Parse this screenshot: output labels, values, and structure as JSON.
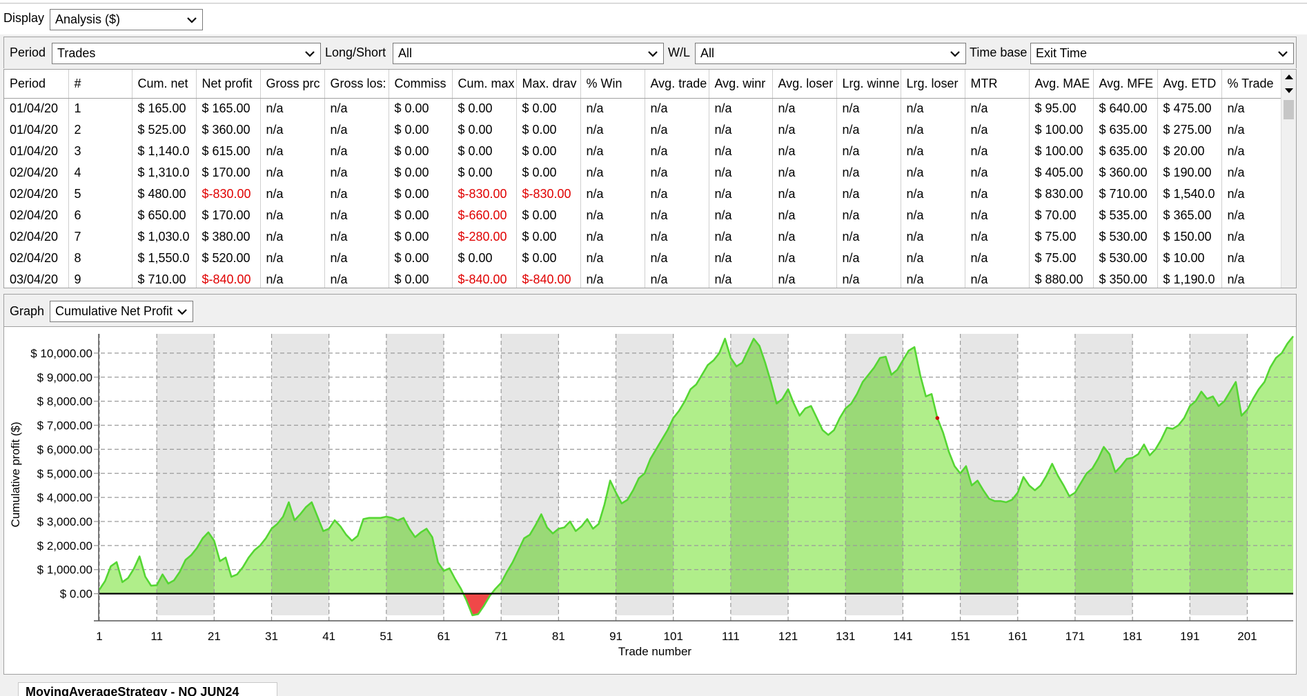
{
  "display": {
    "label": "Display",
    "value": "Analysis ($)"
  },
  "filters": {
    "period": {
      "label": "Period",
      "value": "Trades"
    },
    "long_short": {
      "label": "Long/Short",
      "value": "All"
    },
    "wl": {
      "label": "W/L",
      "value": "All"
    },
    "time_base": {
      "label": "Time base",
      "value": "Exit Time"
    }
  },
  "table": {
    "headers": [
      "Period",
      "#",
      "Cum. net",
      "Net profit",
      "Gross prc",
      "Gross los:",
      "Commiss",
      "Cum. max",
      "Max. drav",
      "% Win",
      "Avg. trade",
      "Avg. winr",
      "Avg. loser",
      "Lrg. winne",
      "Lrg. loser",
      "MTR",
      "Avg. MAE",
      "Avg. MFE",
      "Avg. ETD",
      "% Trade"
    ],
    "rows": [
      [
        "01/04/20",
        "1",
        "$ 165.00",
        "$ 165.00",
        "n/a",
        "n/a",
        "$ 0.00",
        "$ 0.00",
        "$ 0.00",
        "n/a",
        "n/a",
        "n/a",
        "n/a",
        "n/a",
        "n/a",
        "n/a",
        "$ 95.00",
        "$ 640.00",
        "$ 475.00",
        "n/a"
      ],
      [
        "01/04/20",
        "2",
        "$ 525.00",
        "$ 360.00",
        "n/a",
        "n/a",
        "$ 0.00",
        "$ 0.00",
        "$ 0.00",
        "n/a",
        "n/a",
        "n/a",
        "n/a",
        "n/a",
        "n/a",
        "n/a",
        "$ 100.00",
        "$ 635.00",
        "$ 275.00",
        "n/a"
      ],
      [
        "01/04/20",
        "3",
        "$ 1,140.0",
        "$ 615.00",
        "n/a",
        "n/a",
        "$ 0.00",
        "$ 0.00",
        "$ 0.00",
        "n/a",
        "n/a",
        "n/a",
        "n/a",
        "n/a",
        "n/a",
        "n/a",
        "$ 100.00",
        "$ 635.00",
        "$ 20.00",
        "n/a"
      ],
      [
        "02/04/20",
        "4",
        "$ 1,310.0",
        "$ 170.00",
        "n/a",
        "n/a",
        "$ 0.00",
        "$ 0.00",
        "$ 0.00",
        "n/a",
        "n/a",
        "n/a",
        "n/a",
        "n/a",
        "n/a",
        "n/a",
        "$ 405.00",
        "$ 360.00",
        "$ 190.00",
        "n/a"
      ],
      [
        "02/04/20",
        "5",
        "$ 480.00",
        "$-830.00",
        "n/a",
        "n/a",
        "$ 0.00",
        "$-830.00",
        "$-830.00",
        "n/a",
        "n/a",
        "n/a",
        "n/a",
        "n/a",
        "n/a",
        "n/a",
        "$ 830.00",
        "$ 710.00",
        "$ 1,540.0",
        "n/a"
      ],
      [
        "02/04/20",
        "6",
        "$ 650.00",
        "$ 170.00",
        "n/a",
        "n/a",
        "$ 0.00",
        "$-660.00",
        "$ 0.00",
        "n/a",
        "n/a",
        "n/a",
        "n/a",
        "n/a",
        "n/a",
        "n/a",
        "$ 70.00",
        "$ 535.00",
        "$ 365.00",
        "n/a"
      ],
      [
        "02/04/20",
        "7",
        "$ 1,030.0",
        "$ 380.00",
        "n/a",
        "n/a",
        "$ 0.00",
        "$-280.00",
        "$ 0.00",
        "n/a",
        "n/a",
        "n/a",
        "n/a",
        "n/a",
        "n/a",
        "n/a",
        "$ 75.00",
        "$ 530.00",
        "$ 150.00",
        "n/a"
      ],
      [
        "02/04/20",
        "8",
        "$ 1,550.0",
        "$ 520.00",
        "n/a",
        "n/a",
        "$ 0.00",
        "$ 0.00",
        "$ 0.00",
        "n/a",
        "n/a",
        "n/a",
        "n/a",
        "n/a",
        "n/a",
        "n/a",
        "$ 75.00",
        "$ 530.00",
        "$ 10.00",
        "n/a"
      ],
      [
        "03/04/20",
        "9",
        "$ 710.00",
        "$-840.00",
        "n/a",
        "n/a",
        "$ 0.00",
        "$-840.00",
        "$-840.00",
        "n/a",
        "n/a",
        "n/a",
        "n/a",
        "n/a",
        "n/a",
        "n/a",
        "$ 880.00",
        "$ 350.00",
        "$ 1,190.0",
        "n/a"
      ]
    ]
  },
  "graph": {
    "label": "Graph",
    "value": "Cumulative Net Profit"
  },
  "chart_data": {
    "type": "area",
    "xlabel": "Trade number",
    "ylabel": "Cumulative profit ($)",
    "xlim": [
      1,
      209
    ],
    "ylim": [
      -900,
      10800
    ],
    "x_ticks": [
      1,
      11,
      21,
      31,
      41,
      51,
      61,
      71,
      81,
      91,
      101,
      111,
      121,
      131,
      141,
      151,
      161,
      171,
      181,
      191,
      201
    ],
    "y_ticks": [
      0,
      1000,
      2000,
      3000,
      4000,
      5000,
      6000,
      7000,
      8000,
      9000,
      10000
    ],
    "y_tick_labels": [
      "$ 0.00",
      "$ 1,000.00",
      "$ 2,000.00",
      "$ 3,000.00",
      "$ 4,000.00",
      "$ 5,000.00",
      "$ 6,000.00",
      "$ 7,000.00",
      "$ 8,000.00",
      "$ 9,000.00",
      "$ 10,000.00"
    ],
    "colors": {
      "positive_fill": "#b0ee8a",
      "positive_fill_dark": "#9ad977",
      "line": "#55d633",
      "negative_fill": "#f04848",
      "band": "#e6e6e6",
      "grid": "#9a9a9a",
      "marker": "#cc0000"
    },
    "marker_point": [
      147,
      7300
    ],
    "points": [
      [
        1,
        165
      ],
      [
        2,
        525
      ],
      [
        3,
        1140
      ],
      [
        4,
        1310
      ],
      [
        5,
        480
      ],
      [
        6,
        650
      ],
      [
        7,
        1030
      ],
      [
        8,
        1550
      ],
      [
        9,
        710
      ],
      [
        10,
        330
      ],
      [
        11,
        350
      ],
      [
        12,
        800
      ],
      [
        13,
        420
      ],
      [
        14,
        550
      ],
      [
        15,
        900
      ],
      [
        16,
        1400
      ],
      [
        17,
        1600
      ],
      [
        18,
        1900
      ],
      [
        19,
        2300
      ],
      [
        20,
        2550
      ],
      [
        21,
        2200
      ],
      [
        22,
        1350
      ],
      [
        23,
        1500
      ],
      [
        24,
        700
      ],
      [
        25,
        800
      ],
      [
        26,
        1100
      ],
      [
        27,
        1500
      ],
      [
        28,
        1800
      ],
      [
        29,
        2000
      ],
      [
        30,
        2300
      ],
      [
        31,
        2700
      ],
      [
        32,
        2900
      ],
      [
        33,
        3200
      ],
      [
        34,
        3800
      ],
      [
        35,
        3050
      ],
      [
        36,
        3300
      ],
      [
        37,
        3600
      ],
      [
        38,
        3800
      ],
      [
        39,
        3200
      ],
      [
        40,
        2600
      ],
      [
        41,
        2700
      ],
      [
        42,
        3050
      ],
      [
        43,
        2800
      ],
      [
        44,
        2450
      ],
      [
        45,
        2200
      ],
      [
        46,
        2400
      ],
      [
        47,
        3100
      ],
      [
        48,
        3150
      ],
      [
        49,
        3150
      ],
      [
        50,
        3150
      ],
      [
        51,
        3200
      ],
      [
        52,
        3150
      ],
      [
        53,
        3050
      ],
      [
        54,
        3150
      ],
      [
        55,
        2700
      ],
      [
        56,
        2350
      ],
      [
        57,
        2550
      ],
      [
        58,
        2700
      ],
      [
        59,
        2350
      ],
      [
        60,
        1300
      ],
      [
        61,
        950
      ],
      [
        62,
        1050
      ],
      [
        63,
        600
      ],
      [
        64,
        200
      ],
      [
        65,
        -300
      ],
      [
        66,
        -900
      ],
      [
        67,
        -850
      ],
      [
        68,
        -500
      ],
      [
        69,
        -100
      ],
      [
        70,
        200
      ],
      [
        71,
        450
      ],
      [
        72,
        900
      ],
      [
        73,
        1300
      ],
      [
        74,
        1800
      ],
      [
        75,
        2300
      ],
      [
        76,
        2450
      ],
      [
        77,
        2850
      ],
      [
        78,
        3300
      ],
      [
        79,
        2750
      ],
      [
        80,
        2500
      ],
      [
        81,
        2700
      ],
      [
        82,
        2750
      ],
      [
        83,
        3000
      ],
      [
        84,
        2600
      ],
      [
        85,
        2800
      ],
      [
        86,
        3100
      ],
      [
        87,
        2700
      ],
      [
        88,
        2900
      ],
      [
        89,
        3700
      ],
      [
        90,
        4700
      ],
      [
        91,
        4200
      ],
      [
        92,
        3750
      ],
      [
        93,
        3900
      ],
      [
        94,
        4300
      ],
      [
        95,
        4800
      ],
      [
        96,
        5000
      ],
      [
        97,
        5600
      ],
      [
        98,
        6000
      ],
      [
        99,
        6400
      ],
      [
        100,
        6800
      ],
      [
        101,
        7300
      ],
      [
        102,
        7600
      ],
      [
        103,
        8000
      ],
      [
        104,
        8500
      ],
      [
        105,
        8700
      ],
      [
        106,
        9100
      ],
      [
        107,
        9500
      ],
      [
        108,
        9700
      ],
      [
        109,
        10000
      ],
      [
        110,
        10600
      ],
      [
        111,
        9800
      ],
      [
        112,
        9450
      ],
      [
        113,
        9600
      ],
      [
        114,
        10100
      ],
      [
        115,
        10600
      ],
      [
        116,
        10300
      ],
      [
        117,
        9600
      ],
      [
        118,
        8800
      ],
      [
        119,
        7900
      ],
      [
        120,
        8100
      ],
      [
        121,
        8500
      ],
      [
        122,
        7900
      ],
      [
        123,
        7400
      ],
      [
        124,
        7700
      ],
      [
        125,
        7800
      ],
      [
        126,
        7300
      ],
      [
        127,
        6800
      ],
      [
        128,
        6600
      ],
      [
        129,
        6800
      ],
      [
        130,
        7300
      ],
      [
        131,
        7700
      ],
      [
        132,
        7900
      ],
      [
        133,
        8300
      ],
      [
        134,
        8800
      ],
      [
        135,
        9100
      ],
      [
        136,
        9400
      ],
      [
        137,
        9800
      ],
      [
        138,
        9850
      ],
      [
        139,
        9100
      ],
      [
        140,
        9300
      ],
      [
        141,
        9700
      ],
      [
        142,
        10100
      ],
      [
        143,
        10250
      ],
      [
        144,
        9100
      ],
      [
        145,
        8200
      ],
      [
        146,
        8300
      ],
      [
        147,
        7300
      ],
      [
        148,
        6700
      ],
      [
        149,
        5900
      ],
      [
        150,
        5300
      ],
      [
        151,
        5000
      ],
      [
        152,
        5300
      ],
      [
        153,
        4500
      ],
      [
        154,
        4700
      ],
      [
        155,
        4300
      ],
      [
        156,
        3950
      ],
      [
        157,
        3850
      ],
      [
        158,
        3850
      ],
      [
        159,
        3800
      ],
      [
        160,
        3900
      ],
      [
        161,
        4200
      ],
      [
        162,
        4850
      ],
      [
        163,
        4500
      ],
      [
        164,
        4300
      ],
      [
        165,
        4500
      ],
      [
        166,
        4900
      ],
      [
        167,
        5400
      ],
      [
        168,
        4900
      ],
      [
        169,
        4500
      ],
      [
        170,
        4050
      ],
      [
        171,
        4200
      ],
      [
        172,
        4600
      ],
      [
        173,
        5000
      ],
      [
        174,
        5200
      ],
      [
        175,
        5600
      ],
      [
        176,
        6100
      ],
      [
        177,
        5800
      ],
      [
        178,
        5050
      ],
      [
        179,
        5300
      ],
      [
        180,
        5600
      ],
      [
        181,
        5650
      ],
      [
        182,
        5800
      ],
      [
        183,
        6200
      ],
      [
        184,
        5750
      ],
      [
        185,
        6000
      ],
      [
        186,
        6400
      ],
      [
        187,
        6900
      ],
      [
        188,
        6850
      ],
      [
        189,
        7000
      ],
      [
        190,
        7300
      ],
      [
        191,
        7800
      ],
      [
        192,
        8000
      ],
      [
        193,
        8400
      ],
      [
        194,
        8100
      ],
      [
        195,
        8200
      ],
      [
        196,
        7800
      ],
      [
        197,
        8000
      ],
      [
        198,
        8400
      ],
      [
        199,
        8800
      ],
      [
        200,
        7400
      ],
      [
        201,
        7650
      ],
      [
        202,
        8100
      ],
      [
        203,
        8500
      ],
      [
        204,
        8800
      ],
      [
        205,
        9400
      ],
      [
        206,
        9800
      ],
      [
        207,
        10000
      ],
      [
        208,
        10400
      ],
      [
        209,
        10700
      ]
    ]
  },
  "bottom_tab": {
    "label": "MovingAverageStrategy - NQ JUN24"
  }
}
